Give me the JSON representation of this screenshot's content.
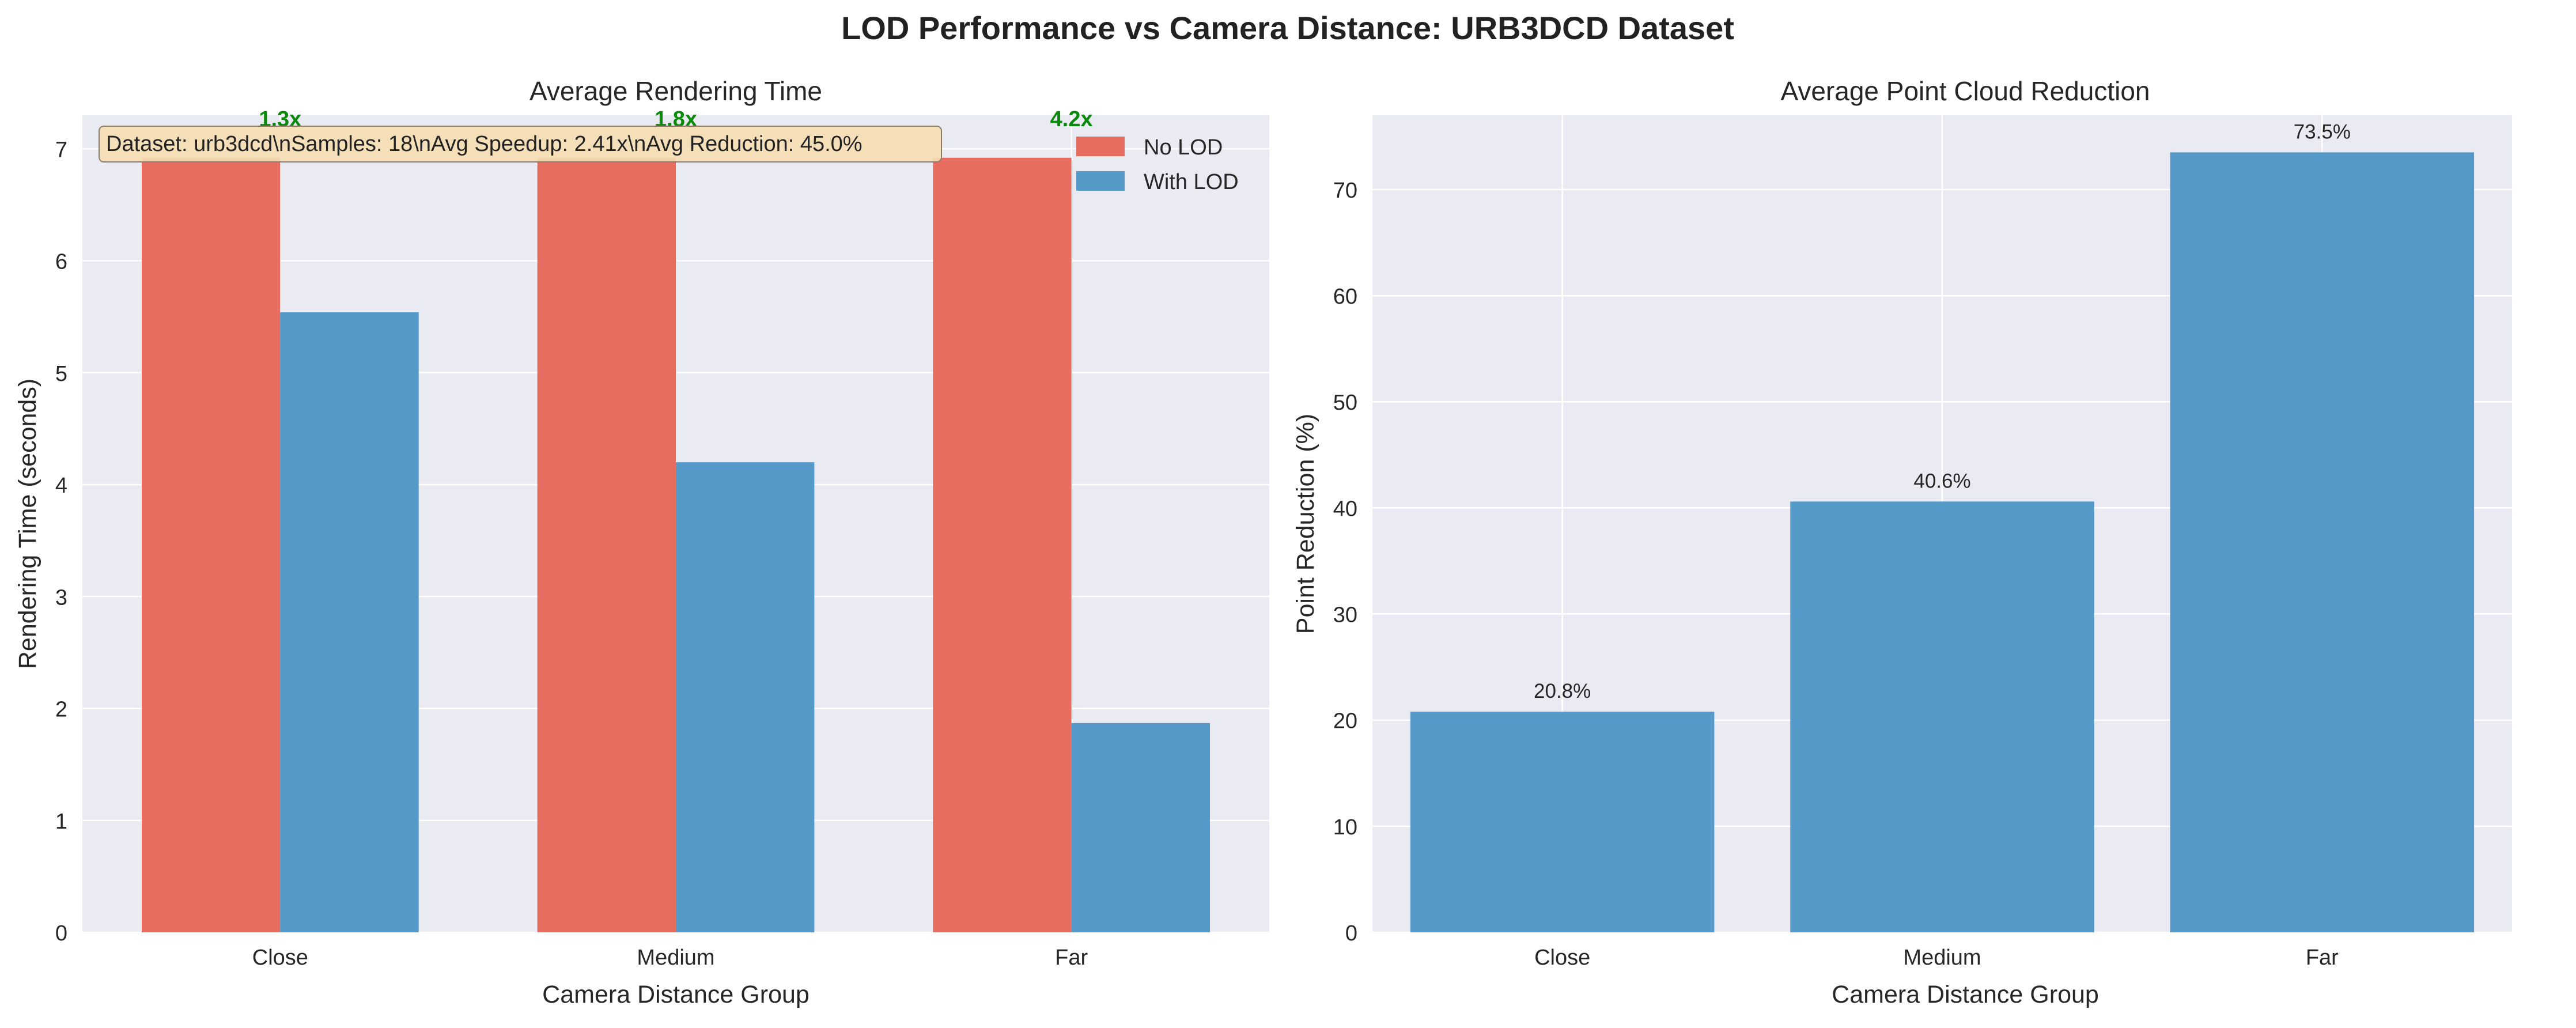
{
  "figure_title": "LOD Performance vs Camera Distance: URB3DCD Dataset",
  "colors": {
    "no_lod": "#E76C60",
    "with_lod": "#5499C7",
    "panel_bg": "#EAEAF2",
    "grid": "#FFFFFF",
    "speedup": "#0A8A0A",
    "info_box": "#F5DEB3"
  },
  "chart_data": [
    {
      "type": "bar",
      "title": "Average Rendering Time",
      "xlabel": "Camera Distance Group",
      "ylabel": "Rendering Time (seconds)",
      "categories": [
        "Close",
        "Medium",
        "Far"
      ],
      "series": [
        {
          "name": "No LOD",
          "values": [
            6.92,
            6.92,
            6.92
          ]
        },
        {
          "name": "With LOD",
          "values": [
            5.54,
            4.2,
            1.87
          ]
        }
      ],
      "ylim": [
        0,
        7.3
      ],
      "yticks": [
        0,
        1,
        2,
        3,
        4,
        5,
        6,
        7
      ],
      "grid": true,
      "legend": "top-right",
      "speedup_labels": [
        "1.3x",
        "1.8x",
        "4.2x"
      ],
      "info_text": "Dataset: urb3dcd\\nSamples: 18\\nAvg Speedup: 2.41x\\nAvg Reduction: 45.0%"
    },
    {
      "type": "bar",
      "title": "Average Point Cloud Reduction",
      "xlabel": "Camera Distance Group",
      "ylabel": "Point Reduction (%)",
      "categories": [
        "Close",
        "Medium",
        "Far"
      ],
      "values": [
        20.8,
        40.6,
        73.5
      ],
      "value_labels": [
        "20.8%",
        "40.6%",
        "73.5%"
      ],
      "ylim": [
        0,
        77
      ],
      "yticks": [
        0,
        10,
        20,
        30,
        40,
        50,
        60,
        70
      ],
      "grid": true
    }
  ]
}
